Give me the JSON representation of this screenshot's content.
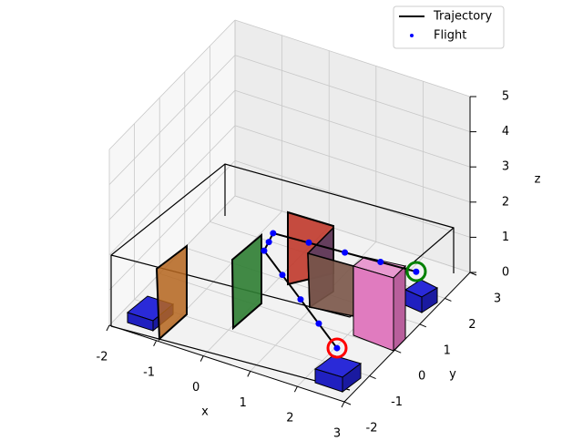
{
  "chart_data": {
    "type": "line3d",
    "xlabel": "x",
    "ylabel": "y",
    "zlabel": "z",
    "xlim": [
      -2,
      3
    ],
    "ylim": [
      -2,
      3
    ],
    "zlim": [
      0,
      5
    ],
    "xticks": [
      -2,
      -1,
      0,
      1,
      2,
      3
    ],
    "yticks": [
      -2,
      -1,
      0,
      1,
      2,
      3
    ],
    "zticks": [
      0,
      1,
      2,
      3,
      4,
      5
    ],
    "grid": true,
    "legend": "upper right",
    "series": [
      {
        "name": "Trajectory",
        "color": "#000000",
        "style": "line",
        "x": [
          2.48,
          0.16,
          0.03,
          2.56
        ],
        "y": [
          -1.32,
          0.12,
          0.72,
          1.68
        ],
        "z": [
          0.8,
          1.5,
          1.5,
          0.8
        ]
      },
      {
        "name": "Flight",
        "color": "#0000ff",
        "style": "dots",
        "x": [
          2.48,
          1.9,
          1.32,
          0.74,
          0.16,
          0.1,
          0.03,
          0.66,
          1.3,
          1.93,
          2.56
        ],
        "y": [
          -1.32,
          -0.96,
          -0.6,
          -0.24,
          0.12,
          0.42,
          0.72,
          0.96,
          1.2,
          1.44,
          1.68
        ],
        "z": [
          0.8,
          0.98,
          1.15,
          1.33,
          1.5,
          1.5,
          1.5,
          1.33,
          1.15,
          0.98,
          0.8
        ]
      }
    ]
  }
}
